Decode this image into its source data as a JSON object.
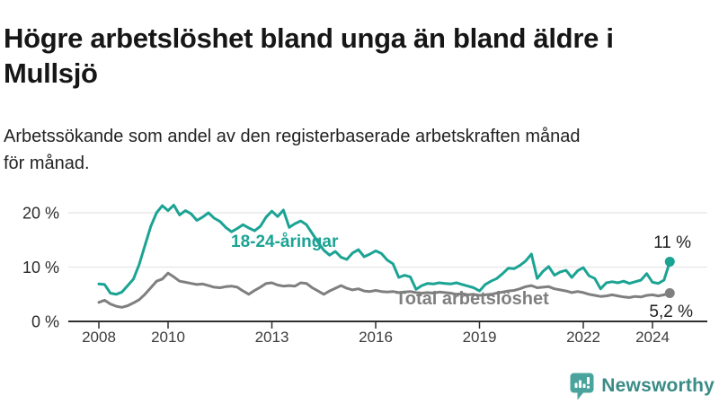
{
  "header": {
    "title": "Högre arbetslöshet bland unga än bland äldre i\nMullsjö",
    "subtitle": "Arbetssökande som andel av den registerbaserade arbetskraften månad\nför månad."
  },
  "chart_data": {
    "type": "line",
    "title": "Högre arbetslöshet bland unga än bland äldre i Mullsjö",
    "subtitle": "Arbetssökande som andel av den registerbaserade arbetskraften månad för månad.",
    "unit": "%",
    "x_start_year": 2008,
    "x_step_years": 0.16667,
    "x_end_year": 2024.5,
    "ylim": [
      0,
      22
    ],
    "grid": "horizontal",
    "y_ticks": [
      {
        "value": 0,
        "label": "0 %"
      },
      {
        "value": 10,
        "label": "10 %"
      },
      {
        "value": 20,
        "label": "20 %"
      }
    ],
    "x_ticks": [
      {
        "year": 2008,
        "label": "2008"
      },
      {
        "year": 2010,
        "label": "2010"
      },
      {
        "year": 2013,
        "label": "2013"
      },
      {
        "year": 2016,
        "label": "2016"
      },
      {
        "year": 2019,
        "label": "2019"
      },
      {
        "year": 2022,
        "label": "2022"
      },
      {
        "year": 2024,
        "label": "2024"
      }
    ],
    "series": [
      {
        "name": "18-24-åringar",
        "color": "#1ba394",
        "end_label": "11 %",
        "end_value": 11.0,
        "values": [
          6.9,
          6.8,
          5.2,
          5.0,
          5.4,
          6.6,
          7.8,
          10.5,
          14.0,
          17.5,
          20.0,
          21.3,
          20.4,
          21.4,
          19.6,
          20.4,
          19.8,
          18.6,
          19.2,
          20.0,
          19.0,
          18.4,
          17.3,
          16.5,
          17.1,
          17.8,
          17.2,
          16.7,
          17.5,
          19.2,
          20.3,
          19.3,
          20.5,
          17.3,
          18.0,
          18.5,
          17.8,
          16.2,
          14.6,
          13.1,
          12.2,
          12.9,
          11.8,
          11.4,
          12.6,
          13.2,
          11.9,
          12.4,
          13.0,
          12.5,
          11.3,
          10.6,
          8.1,
          8.5,
          8.2,
          5.9,
          6.6,
          7.0,
          6.9,
          7.1,
          7.0,
          6.9,
          7.1,
          6.8,
          6.5,
          6.2,
          5.6,
          6.8,
          7.4,
          7.9,
          8.8,
          9.8,
          9.7,
          10.3,
          11.1,
          12.4,
          7.9,
          9.2,
          10.1,
          8.5,
          9.1,
          9.4,
          8.1,
          9.3,
          9.9,
          8.4,
          7.9,
          6.0,
          7.1,
          7.3,
          7.1,
          7.4,
          7.0,
          7.3,
          7.6,
          8.8,
          7.2,
          7.0,
          7.6,
          11.0
        ]
      },
      {
        "name": "Total arbetslöshet",
        "color": "#7f7f7f",
        "end_label": "5,2 %",
        "end_value": 5.2,
        "values": [
          3.5,
          3.9,
          3.2,
          2.8,
          2.6,
          2.9,
          3.4,
          4.0,
          5.0,
          6.2,
          7.4,
          7.8,
          8.9,
          8.2,
          7.4,
          7.2,
          7.0,
          6.8,
          6.9,
          6.6,
          6.3,
          6.2,
          6.4,
          6.5,
          6.3,
          5.6,
          5.0,
          5.7,
          6.3,
          7.0,
          7.1,
          6.7,
          6.5,
          6.6,
          6.5,
          7.1,
          7.0,
          6.2,
          5.6,
          5.0,
          5.6,
          6.1,
          6.6,
          6.1,
          5.8,
          6.0,
          5.6,
          5.5,
          5.7,
          5.5,
          5.4,
          5.5,
          5.3,
          5.4,
          5.5,
          5.3,
          5.2,
          5.3,
          5.2,
          5.4,
          5.3,
          5.2,
          5.0,
          5.1,
          4.9,
          5.0,
          4.8,
          4.9,
          5.0,
          5.2,
          5.4,
          5.6,
          5.7,
          6.0,
          6.4,
          6.6,
          6.2,
          6.3,
          6.4,
          6.0,
          5.8,
          5.6,
          5.3,
          5.5,
          5.3,
          5.0,
          4.8,
          4.6,
          4.7,
          4.9,
          4.7,
          4.5,
          4.4,
          4.6,
          4.5,
          4.8,
          4.9,
          4.7,
          4.9,
          5.2
        ]
      }
    ],
    "colors": {
      "grid": "#e9e9e9",
      "axis": "#2f2f2f",
      "tick_text": "#3c3c3c",
      "y_tick_text": "#2b2b2b",
      "end_label_text": "#1f1f1f"
    }
  },
  "branding": {
    "logo_text": "Newsworthy",
    "logo_color": "#3a8b86",
    "logo_icon": "chart-speech-bubble-icon",
    "icon_color": "#4aa49d"
  }
}
